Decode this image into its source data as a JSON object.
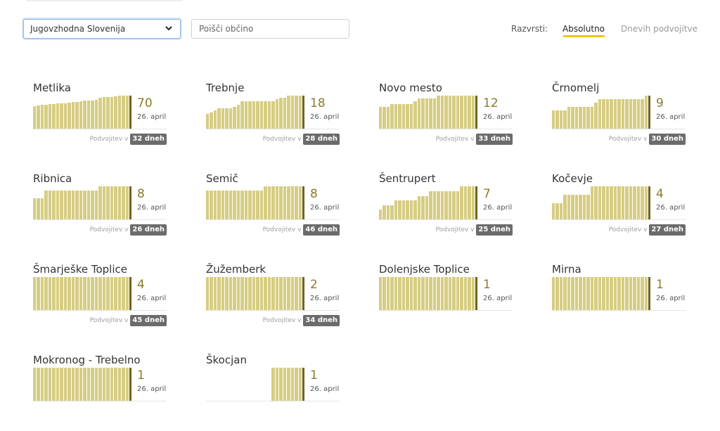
{
  "controls": {
    "region_selected": "Jugovzhodna Slovenija",
    "search_placeholder": "Poišči občino",
    "sort_label": "Razvrsti:",
    "sort_absolute": "Absolutno",
    "sort_doubling": "Dnevih podvojitve",
    "accent_color": "#f1c40f"
  },
  "colors": {
    "bar": "#d6cd83",
    "bar_latest": "#6f6223",
    "value": "#8a7c2a",
    "badge": "#6b6b6b"
  },
  "doubling_label": "Podvojitev v",
  "municipalities": [
    {
      "name": "Metlika",
      "value": "70",
      "date": "26. april",
      "doubling": "32 dneh",
      "bars": [
        0.68,
        0.7,
        0.72,
        0.72,
        0.74,
        0.74,
        0.76,
        0.76,
        0.76,
        0.78,
        0.8,
        0.8,
        0.84,
        0.86,
        0.86,
        0.86,
        0.88,
        0.94,
        0.96,
        0.96,
        0.96,
        0.98,
        1,
        1,
        1
      ]
    },
    {
      "name": "Trebnje",
      "value": "18",
      "date": "26. april",
      "doubling": "28 dneh",
      "bars": [
        0.44,
        0.5,
        0.56,
        0.61,
        0.61,
        0.61,
        0.61,
        0.67,
        0.72,
        0.83,
        0.83,
        0.83,
        0.83,
        0.83,
        0.83,
        0.83,
        0.83,
        0.83,
        0.89,
        0.94,
        0.94,
        1,
        1,
        1,
        1
      ]
    },
    {
      "name": "Novo mesto",
      "value": "12",
      "date": "26. april",
      "doubling": "33 dneh",
      "bars": [
        0.67,
        0.67,
        0.67,
        0.75,
        0.75,
        0.75,
        0.75,
        0.75,
        0.75,
        0.83,
        0.92,
        0.92,
        0.92,
        0.92,
        0.92,
        1,
        1,
        1,
        1,
        1,
        1,
        1,
        1,
        1,
        1
      ]
    },
    {
      "name": "Črnomelj",
      "value": "9",
      "date": "26. april",
      "doubling": "30 dneh",
      "bars": [
        0.56,
        0.56,
        0.56,
        0.56,
        0.67,
        0.67,
        0.67,
        0.67,
        0.67,
        0.67,
        0.67,
        0.78,
        0.89,
        0.89,
        0.89,
        0.89,
        0.89,
        0.89,
        0.89,
        0.89,
        0.89,
        0.89,
        0.89,
        0.89,
        1
      ]
    },
    {
      "name": "Ribnica",
      "value": "8",
      "date": "26. april",
      "doubling": "26 dneh",
      "bars": [
        0.63,
        0.63,
        0.63,
        0.88,
        0.88,
        0.88,
        0.88,
        0.88,
        0.88,
        0.88,
        0.88,
        0.88,
        0.88,
        0.88,
        0.88,
        0.88,
        0.88,
        1,
        1,
        1,
        1,
        1,
        1,
        1,
        1
      ]
    },
    {
      "name": "Semič",
      "value": "8",
      "date": "26. april",
      "doubling": "46 dneh",
      "bars": [
        0.88,
        0.88,
        0.88,
        0.88,
        0.88,
        0.88,
        0.88,
        0.88,
        0.88,
        0.88,
        0.88,
        0.88,
        0.88,
        0.88,
        0.88,
        1,
        1,
        1,
        1,
        1,
        1,
        1,
        1,
        1,
        1
      ]
    },
    {
      "name": "Šentrupert",
      "value": "7",
      "date": "26. april",
      "doubling": "25 dneh",
      "bars": [
        0.29,
        0.43,
        0.43,
        0.43,
        0.57,
        0.57,
        0.57,
        0.57,
        0.57,
        0.57,
        0.71,
        0.71,
        0.71,
        0.86,
        0.86,
        0.86,
        0.86,
        0.86,
        0.86,
        0.86,
        0.86,
        1,
        1,
        1,
        1
      ]
    },
    {
      "name": "Kočevje",
      "value": "4",
      "date": "26. april",
      "doubling": "27 dneh",
      "bars": [
        0.5,
        0.5,
        0.5,
        0.75,
        0.75,
        0.75,
        0.75,
        0.75,
        0.75,
        0.75,
        1,
        1,
        1,
        1,
        1,
        1,
        1,
        1,
        1,
        1,
        1,
        1,
        1,
        1,
        1
      ]
    },
    {
      "name": "Šmarješke Toplice",
      "value": "4",
      "date": "26. april",
      "doubling": "45 dneh",
      "bars": [
        1,
        1,
        1,
        1,
        1,
        1,
        1,
        1,
        1,
        1,
        1,
        1,
        1,
        1,
        1,
        1,
        1,
        1,
        1,
        1,
        1,
        1,
        1,
        1,
        1
      ]
    },
    {
      "name": "Žužemberk",
      "value": "2",
      "date": "26. april",
      "doubling": "34 dneh",
      "bars": [
        1,
        1,
        1,
        1,
        1,
        1,
        1,
        1,
        1,
        1,
        1,
        1,
        1,
        1,
        1,
        1,
        1,
        1,
        1,
        1,
        1,
        1,
        1,
        1,
        1
      ]
    },
    {
      "name": "Dolenjske Toplice",
      "value": "1",
      "date": "26. april",
      "doubling": "",
      "bars": [
        1,
        1,
        1,
        1,
        1,
        1,
        1,
        1,
        1,
        1,
        1,
        1,
        1,
        1,
        1,
        1,
        1,
        1,
        1,
        1,
        1,
        1,
        1,
        1,
        1
      ]
    },
    {
      "name": "Mirna",
      "value": "1",
      "date": "26. april",
      "doubling": "",
      "bars": [
        1,
        1,
        1,
        1,
        1,
        1,
        1,
        1,
        1,
        1,
        1,
        1,
        1,
        1,
        1,
        1,
        1,
        1,
        1,
        1,
        1,
        1,
        1,
        1,
        1
      ]
    },
    {
      "name": "Mokronog - Trebelno",
      "value": "1",
      "date": "26. april",
      "doubling": "",
      "bars": [
        1,
        1,
        1,
        1,
        1,
        1,
        1,
        1,
        1,
        1,
        1,
        1,
        1,
        1,
        1,
        1,
        1,
        1,
        1,
        1,
        1,
        1,
        1,
        1,
        1
      ]
    },
    {
      "name": "Škocjan",
      "value": "1",
      "date": "26. april",
      "doubling": "",
      "bars": [
        0,
        0,
        0,
        0,
        0,
        0,
        0,
        0,
        0,
        0,
        0,
        0,
        0,
        0,
        0,
        0,
        0,
        1,
        1,
        1,
        1,
        1,
        1,
        1,
        1
      ]
    }
  ]
}
